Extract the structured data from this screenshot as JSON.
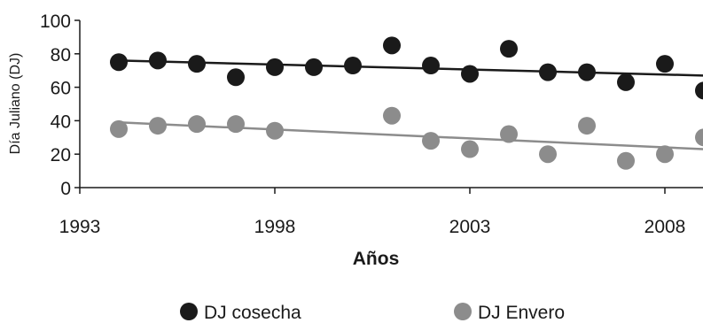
{
  "chart_data": {
    "type": "scatter",
    "title": "",
    "xlabel": "Años",
    "ylabel": "Día Juliano (DJ)",
    "xlim": [
      1993,
      2009
    ],
    "ylim": [
      0,
      100
    ],
    "xticks": [
      1993,
      1998,
      2003,
      2008
    ],
    "yticks": [
      0,
      20,
      40,
      60,
      80,
      100
    ],
    "grid": false,
    "legend_position": "bottom",
    "series": [
      {
        "name": "DJ cosecha",
        "color": "#1a1a1a",
        "x": [
          1994,
          1995,
          1996,
          1997,
          1998,
          1999,
          2000,
          2001,
          2002,
          2003,
          2004,
          2005,
          2006,
          2007,
          2008,
          2009
        ],
        "y": [
          75,
          76,
          74,
          66,
          72,
          72,
          73,
          85,
          73,
          68,
          83,
          69,
          69,
          63,
          74,
          58
        ],
        "trendline": {
          "x": [
            1994,
            2009
          ],
          "y": [
            76,
            67
          ]
        }
      },
      {
        "name": "DJ Envero",
        "color": "#8c8c8c",
        "x": [
          1994,
          1995,
          1996,
          1997,
          1998,
          2001,
          2002,
          2003,
          2004,
          2005,
          2006,
          2007,
          2008,
          2009
        ],
        "y": [
          35,
          37,
          38,
          38,
          34,
          43,
          28,
          23,
          32,
          20,
          37,
          16,
          20,
          30
        ],
        "trendline": {
          "x": [
            1994,
            2009
          ],
          "y": [
            39,
            23
          ]
        }
      }
    ]
  }
}
